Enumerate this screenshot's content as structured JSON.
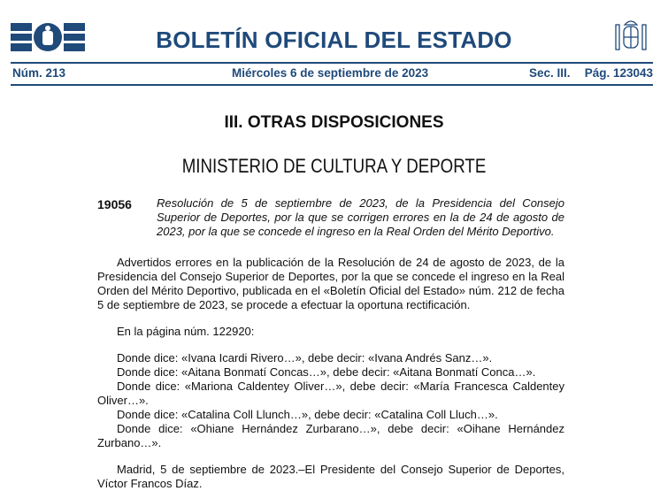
{
  "header": {
    "logo": "BOE",
    "title": "BOLETÍN OFICIAL DEL ESTADO",
    "number": "Núm. 213",
    "date": "Miércoles 6 de septiembre de 2023",
    "section": "Sec. III.",
    "page": "Pág. 123043",
    "brand_color": "#1f4a7a"
  },
  "section_title": "III. OTRAS DISPOSICIONES",
  "ministry": "MINISTERIO DE CULTURA Y DEPORTE",
  "entry": {
    "number": "19056",
    "summary": "Resolución de 5 de septiembre de 2023, de la Presidencia del Consejo Superior de Deportes, por la que se corrigen errores en la de 24 de agosto de 2023, por la que se concede el ingreso en la Real Orden del Mérito Deportivo."
  },
  "body": {
    "intro": "Advertidos errores en la publicación de la Resolución de 24 de agosto de 2023, de la Presidencia del Consejo Superior de Deportes, por la que se concede el ingreso en la Real Orden del Mérito Deportivo, publicada en el «Boletín Oficial del Estado» núm. 212 de fecha 5 de septiembre de 2023, se procede a efectuar la oportuna rectificación.",
    "page_ref": "En la página núm. 122920:",
    "corrections": [
      "Donde dice: «Ivana Icardi Rivero…», debe decir: «Ivana Andrés Sanz…».",
      "Donde dice: «Aitana Bonmatí Concas…», debe decir: «Aitana Bonmatí Conca…».",
      "Donde dice: «Mariona Caldentey Oliver…», debe decir: «María Francesca Caldentey Oliver…».",
      "Donde dice: «Catalina Coll Llunch…», debe decir: «Catalina Coll Lluch…».",
      "Donde dice: «Ohiane Hernández Zurbarano…», debe decir: «Oihane Hernández Zurbano…»."
    ],
    "signature": "Madrid, 5 de septiembre de 2023.–El Presidente del Consejo Superior de Deportes, Víctor Francos Díaz."
  }
}
